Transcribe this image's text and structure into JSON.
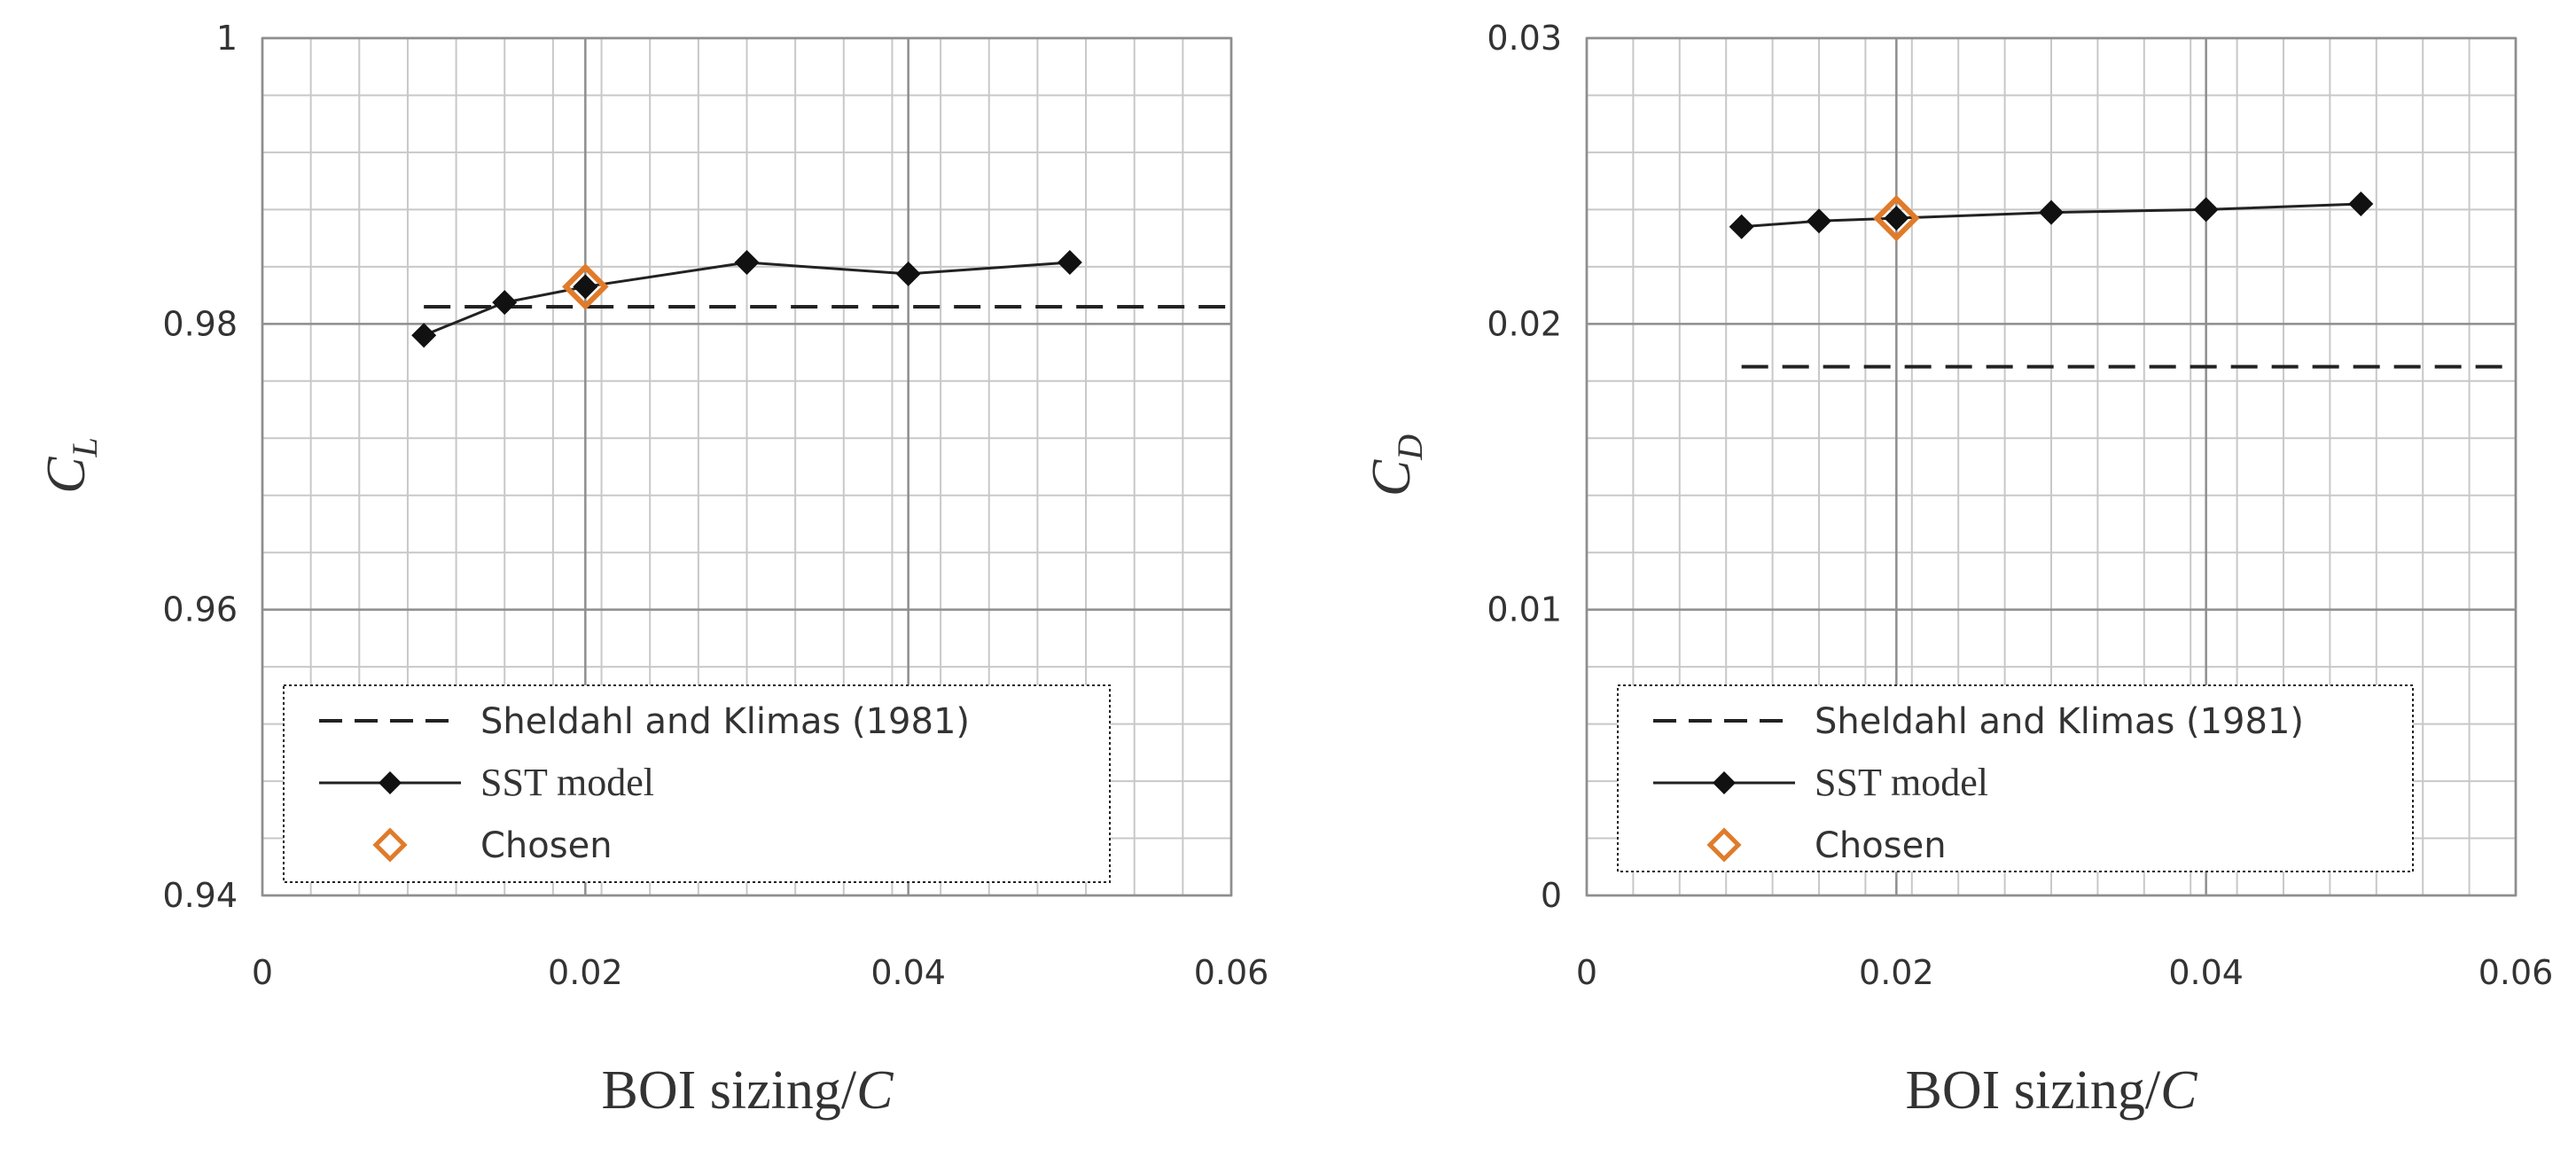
{
  "chart_data": [
    {
      "type": "line",
      "panel": "left",
      "xlabel": "BOI sizing/",
      "xlabel_italic": "C",
      "ylabel_main": "C",
      "ylabel_sub": "L",
      "xlim": [
        0,
        0.06
      ],
      "ylim": [
        0.94,
        1.0
      ],
      "xticks": [
        0,
        0.02,
        0.04,
        0.06
      ],
      "xtick_labels": [
        "0",
        "0.02",
        "0.04",
        "0.06"
      ],
      "yticks": [
        0.94,
        0.96,
        0.98,
        1.0
      ],
      "ytick_labels": [
        "0.94",
        "0.96",
        "0.98",
        "1"
      ],
      "grid": true,
      "reference": {
        "name": "Sheldahl and Klimas (1981)",
        "value": 0.9812,
        "x_range": [
          0.01,
          0.06
        ]
      },
      "series": [
        {
          "name": "SST model",
          "x": [
            0.01,
            0.015,
            0.02,
            0.03,
            0.04,
            0.05
          ],
          "values": [
            0.9792,
            0.9815,
            0.9826,
            0.9843,
            0.9835,
            0.9843
          ]
        }
      ],
      "chosen": {
        "name": "Chosen",
        "x": 0.02,
        "y": 0.9826
      },
      "legend": [
        "Sheldahl and Klimas (1981)",
        "SST model",
        "Chosen"
      ],
      "legend_position": "bottom-left"
    },
    {
      "type": "line",
      "panel": "right",
      "xlabel": "BOI sizing/",
      "xlabel_italic": "C",
      "ylabel_main": "C",
      "ylabel_sub": "D",
      "xlim": [
        0,
        0.06
      ],
      "ylim": [
        0,
        0.03
      ],
      "xticks": [
        0,
        0.02,
        0.04,
        0.06
      ],
      "xtick_labels": [
        "0",
        "0.02",
        "0.04",
        "0.06"
      ],
      "yticks": [
        0,
        0.01,
        0.02,
        0.03
      ],
      "ytick_labels": [
        "0",
        "0.01",
        "0.02",
        "0.03"
      ],
      "grid": true,
      "reference": {
        "name": "Sheldahl and Klimas (1981)",
        "value": 0.0185,
        "x_range": [
          0.01,
          0.06
        ]
      },
      "series": [
        {
          "name": "SST model",
          "x": [
            0.01,
            0.015,
            0.02,
            0.03,
            0.04,
            0.05
          ],
          "values": [
            0.0234,
            0.0236,
            0.0237,
            0.0239,
            0.024,
            0.0242
          ]
        }
      ],
      "chosen": {
        "name": "Chosen",
        "x": 0.02,
        "y": 0.0237
      },
      "legend": [
        "Sheldahl and Klimas (1981)",
        "SST model",
        "Chosen"
      ],
      "legend_position": "bottom-left"
    }
  ],
  "colors": {
    "grid": "#a6a6a6",
    "line": "#222222",
    "marker": "#111111",
    "chosen": "#e07b2a",
    "text": "#333333"
  }
}
